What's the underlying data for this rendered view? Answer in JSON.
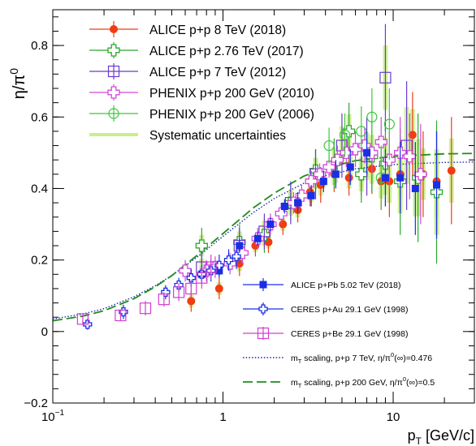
{
  "chart_data": {
    "type": "scatter",
    "xlabel": "p_T [GeV/c]",
    "xlabel_main": "p",
    "xlabel_sub": "T",
    "xlabel_unit": " [GeV/c]",
    "ylabel": "η/π⁰",
    "ylabel_main": "η/π",
    "ylabel_sup": "0",
    "xscale": "log",
    "xlim": [
      0.1,
      30
    ],
    "ylim": [
      -0.2,
      0.9
    ],
    "xticks": [
      {
        "v": 0.1,
        "label": "10",
        "sup": "−1"
      },
      {
        "v": 1,
        "label": "1",
        "sup": ""
      },
      {
        "v": 10,
        "label": "10",
        "sup": ""
      }
    ],
    "yticks": [
      {
        "v": -0.2,
        "label": "−0.2"
      },
      {
        "v": 0,
        "label": "0"
      },
      {
        "v": 0.2,
        "label": "0.2"
      },
      {
        "v": 0.4,
        "label": "0.4"
      },
      {
        "v": 0.6,
        "label": "0.6"
      },
      {
        "v": 0.8,
        "label": "0.8"
      }
    ],
    "legend_top": {
      "placement": "top-left",
      "entries": [
        {
          "series": "alice8",
          "label": "ALICE p+p 8 TeV (2018)"
        },
        {
          "series": "alice276",
          "label": "ALICE p+p 2.76 TeV (2017)"
        },
        {
          "series": "alice7",
          "label": "ALICE p+p 7 TeV (2012)"
        },
        {
          "series": "phenix2010",
          "label": "PHENIX p+p 200 GeV (2010)"
        },
        {
          "series": "phenix2006",
          "label": "PHENIX p+p 200 GeV (2006)"
        },
        {
          "series": "syst",
          "label": "Systematic uncertainties"
        }
      ]
    },
    "legend_bottom": {
      "placement": "bottom-right",
      "entries": [
        {
          "series": "alicepPb",
          "label": "ALICE p+Pb 5.02 TeV (2018)"
        },
        {
          "series": "ceresAu",
          "label": "CERES p+Au 29.1 GeV (1998)"
        },
        {
          "series": "ceresBe",
          "label": "CERES p+Be 29.1 GeV (1998)"
        },
        {
          "series": "mt7",
          "label_pre": "m",
          "label_sub": "T",
          "label_mid": " scaling, p+p 7 TeV, η/π",
          "label_sup": "0",
          "label_post": "(∞)=0.476"
        },
        {
          "series": "mt200",
          "label_pre": "m",
          "label_sub": "T",
          "label_mid": " scaling, p+p 200 GeV, η/π",
          "label_sup": "0",
          "label_post": "(∞)=0.5"
        }
      ]
    },
    "colors": {
      "alice8": "#f03c14",
      "alice276": "#2ca82c",
      "alice7": "#6a3ad0",
      "phenix2010": "#d04ad8",
      "phenix2006": "#3cc83c",
      "syst": "#c8f088",
      "alicepPb": "#1a2ee6",
      "ceresAu": "#1a2ee6",
      "ceresBe": "#d040d0",
      "mt7": "#1a2aa8",
      "mt200": "#1e8c1e"
    },
    "curves": [
      {
        "series": "mt7",
        "style": "dotted",
        "x": [
          0.1,
          0.15,
          0.2,
          0.3,
          0.4,
          0.5,
          0.7,
          1.0,
          1.5,
          2.0,
          3.0,
          4.0,
          6.0,
          10,
          20,
          30
        ],
        "y": [
          0.035,
          0.049,
          0.064,
          0.097,
          0.128,
          0.157,
          0.207,
          0.266,
          0.332,
          0.372,
          0.415,
          0.436,
          0.455,
          0.467,
          0.473,
          0.474
        ]
      },
      {
        "series": "mt200",
        "style": "dashed",
        "x": [
          0.1,
          0.15,
          0.2,
          0.3,
          0.4,
          0.5,
          0.7,
          1.0,
          1.5,
          2.0,
          3.0,
          4.0,
          6.0,
          10,
          20,
          30
        ],
        "y": [
          0.03,
          0.043,
          0.058,
          0.092,
          0.125,
          0.156,
          0.212,
          0.274,
          0.345,
          0.387,
          0.435,
          0.457,
          0.478,
          0.49,
          0.497,
          0.498
        ]
      }
    ],
    "series": [
      {
        "name": "ALICE p+p 8 TeV (2018)",
        "key": "alice8",
        "marker": "circle",
        "x": [
          0.65,
          0.95,
          1.25,
          1.55,
          1.85,
          2.25,
          2.75,
          3.25,
          3.75,
          4.5,
          5.5,
          6.5,
          7.5,
          8.5,
          9.5,
          11,
          13,
          15,
          18,
          22
        ],
        "y": [
          0.085,
          0.12,
          0.19,
          0.24,
          0.25,
          0.3,
          0.34,
          0.39,
          0.41,
          0.44,
          0.43,
          0.44,
          0.455,
          0.42,
          0.42,
          0.44,
          0.55,
          0.44,
          0.42,
          0.45
        ],
        "err": [
          0.03,
          0.03,
          0.035,
          0.03,
          0.03,
          0.03,
          0.035,
          0.04,
          0.05,
          0.05,
          0.05,
          0.06,
          0.07,
          0.08,
          0.1,
          0.1,
          0.12,
          0.12,
          0.14,
          0.15
        ]
      },
      {
        "name": "ALICE p+p 2.76 TeV (2017)",
        "key": "alice276",
        "marker": "cross",
        "x": [
          0.75,
          1.25,
          1.75,
          2.5,
          3.5,
          4.5,
          5.5,
          6.5,
          7.5,
          9,
          11,
          14,
          18
        ],
        "y": [
          0.24,
          0.25,
          0.27,
          0.36,
          0.45,
          0.47,
          0.56,
          0.44,
          0.49,
          0.47,
          0.42,
          0.43,
          0.39
        ],
        "err": [
          0.05,
          0.05,
          0.05,
          0.05,
          0.06,
          0.07,
          0.08,
          0.08,
          0.1,
          0.12,
          0.15,
          0.18,
          0.2
        ]
      },
      {
        "name": "ALICE p+p 7 TeV (2012)",
        "key": "alice7",
        "marker": "square-open",
        "x": [
          0.75,
          1.25,
          1.75,
          2.5,
          3.5,
          5,
          7,
          9,
          12
        ],
        "y": [
          0.18,
          0.24,
          0.28,
          0.36,
          0.44,
          0.52,
          0.49,
          0.71,
          0.52
        ],
        "err": [
          0.04,
          0.05,
          0.05,
          0.06,
          0.07,
          0.09,
          0.11,
          0.15,
          0.18
        ]
      },
      {
        "name": "PHENIX p+p 200 GeV (2010)",
        "key": "phenix2010",
        "marker": "cross",
        "x": [
          0.6,
          0.8,
          0.9,
          1.1,
          1.3,
          1.6,
          1.9,
          2.2,
          2.6,
          2.9,
          3.3,
          3.7,
          4.2,
          4.7,
          5.3,
          6,
          6.8,
          7.5,
          8.5,
          9.5,
          11,
          12.5,
          14.5
        ],
        "y": [
          0.17,
          0.17,
          0.18,
          0.19,
          0.22,
          0.26,
          0.3,
          0.33,
          0.36,
          0.38,
          0.42,
          0.44,
          0.46,
          0.48,
          0.5,
          0.51,
          0.52,
          0.5,
          0.53,
          0.48,
          0.5,
          0.49,
          0.44
        ],
        "err": [
          0.03,
          0.03,
          0.03,
          0.03,
          0.03,
          0.03,
          0.03,
          0.03,
          0.03,
          0.03,
          0.03,
          0.03,
          0.03,
          0.04,
          0.04,
          0.05,
          0.05,
          0.06,
          0.07,
          0.08,
          0.1,
          0.12,
          0.14
        ]
      },
      {
        "name": "PHENIX p+p 200 GeV (2006)",
        "key": "phenix2006",
        "marker": "circle-open",
        "x": [
          4.2,
          5.2,
          6.5,
          7.5,
          8.5,
          9.5
        ],
        "y": [
          0.52,
          0.55,
          0.56,
          0.6,
          0.43,
          0.58
        ],
        "err": [
          0.05,
          0.06,
          0.07,
          0.08,
          0.09,
          0.1
        ]
      },
      {
        "name": "ALICE p+Pb 5.02 TeV (2018)",
        "key": "alicepPb",
        "marker": "square",
        "x": [
          0.75,
          0.95,
          1.25,
          1.6,
          1.9,
          2.3,
          2.75,
          3.3,
          3.9,
          4.6,
          5.6,
          7,
          9,
          11,
          13.5,
          18
        ],
        "y": [
          0.16,
          0.17,
          0.24,
          0.26,
          0.3,
          0.35,
          0.36,
          0.38,
          0.42,
          0.44,
          0.46,
          0.5,
          0.43,
          0.43,
          0.4,
          0.41
        ],
        "err": [
          0.02,
          0.02,
          0.02,
          0.02,
          0.02,
          0.02,
          0.03,
          0.03,
          0.03,
          0.04,
          0.05,
          0.06,
          0.08,
          0.1,
          0.13,
          0.15
        ]
      },
      {
        "name": "CERES p+Au 29.1 GeV (1998)",
        "key": "ceresAu",
        "marker": "cross-open",
        "x": [
          0.16,
          0.26,
          0.46,
          0.55,
          0.65,
          0.75,
          0.85,
          0.95,
          1.08,
          1.2
        ],
        "y": [
          0.02,
          0.055,
          0.11,
          0.13,
          0.15,
          0.16,
          0.17,
          0.185,
          0.2,
          0.21
        ],
        "err": [
          0.015,
          0.02,
          0.02,
          0.02,
          0.025,
          0.025,
          0.03,
          0.03,
          0.03,
          0.035
        ]
      },
      {
        "name": "CERES p+Be 29.1 GeV (1998)",
        "key": "ceresBe",
        "marker": "square-open",
        "x": [
          0.15,
          0.25,
          0.35,
          0.45,
          0.55,
          0.65,
          0.75,
          0.85
        ],
        "y": [
          0.035,
          0.045,
          0.065,
          0.09,
          0.11,
          0.12,
          0.15,
          0.18
        ],
        "err": [
          0.015,
          0.015,
          0.02,
          0.02,
          0.025,
          0.025,
          0.03,
          0.035
        ]
      }
    ]
  }
}
